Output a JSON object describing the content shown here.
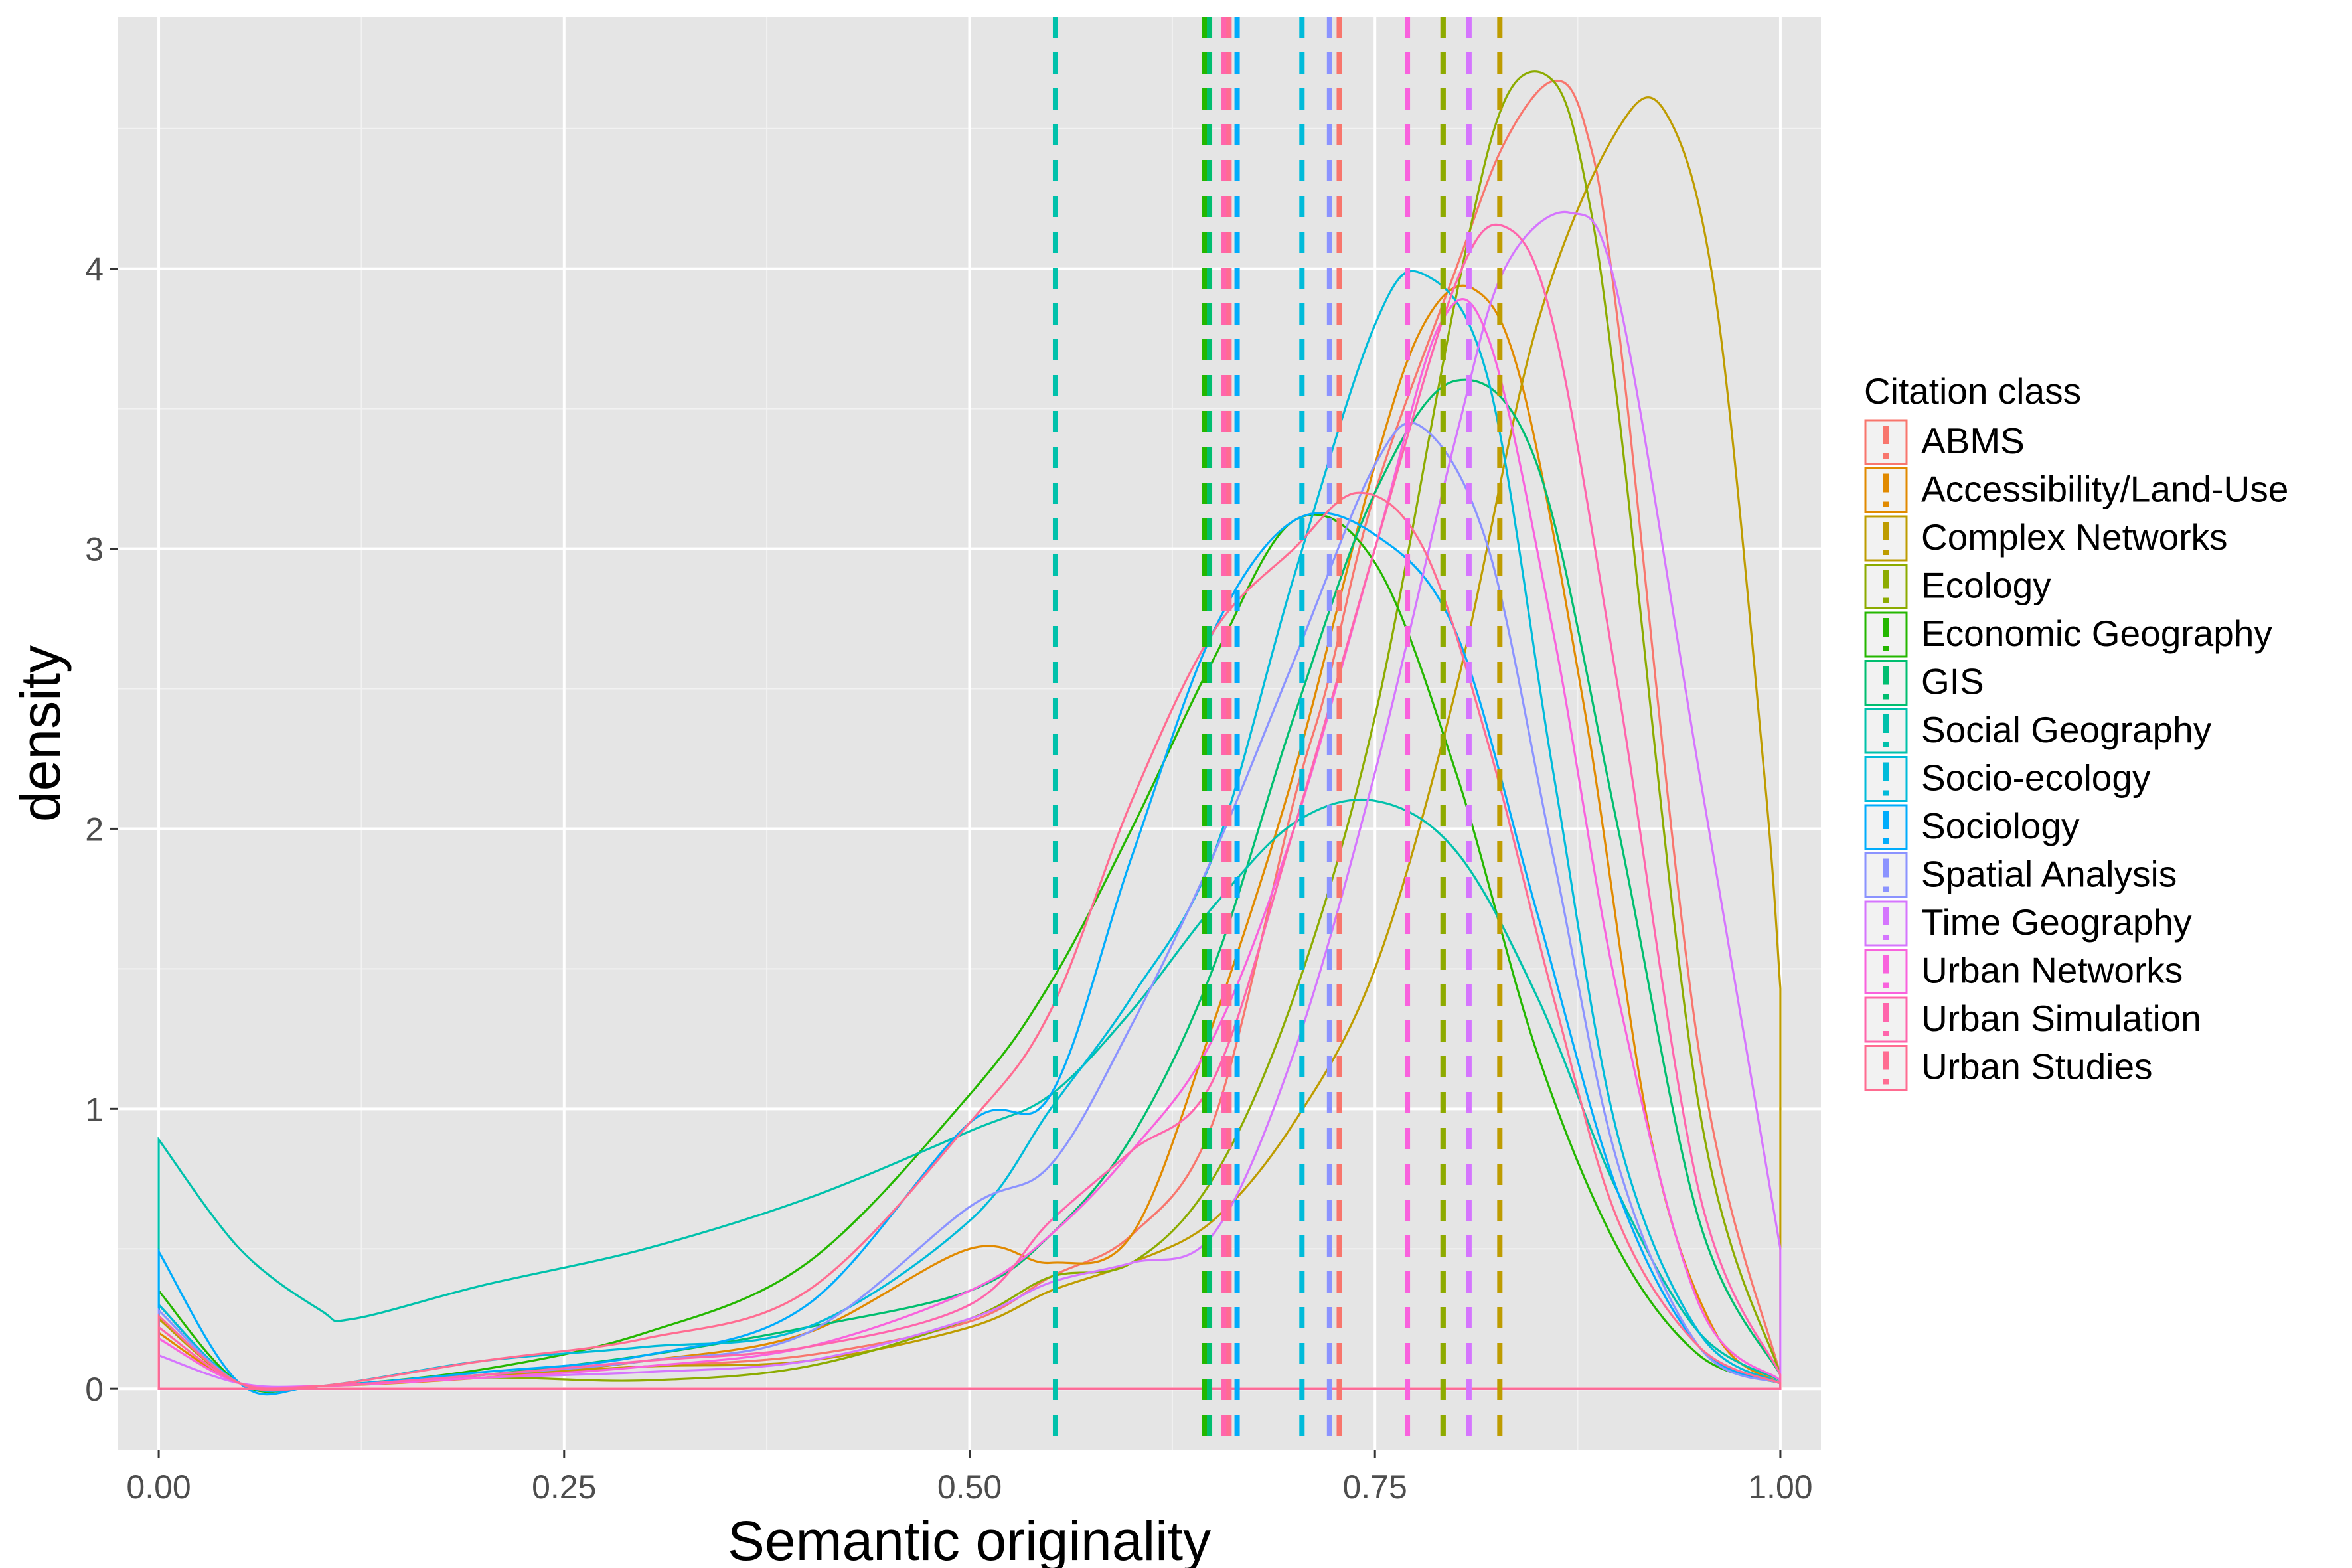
{
  "chart_data": {
    "type": "line",
    "title": "",
    "xlabel": "Semantic originality",
    "ylabel": "density",
    "xlim": [
      -0.025,
      1.025
    ],
    "ylim": [
      -0.22,
      4.9
    ],
    "x_ticks": [
      0,
      0.25,
      0.5,
      0.75,
      1
    ],
    "x_tick_labels": [
      "0.00",
      "0.25",
      "0.50",
      "0.75",
      "1.00"
    ],
    "y_ticks": [
      0,
      1,
      2,
      3,
      4
    ],
    "y_tick_labels": [
      "0",
      "1",
      "2",
      "3",
      "4"
    ],
    "grid": true,
    "background": "#e5e5e5",
    "legend": {
      "title": "Citation class",
      "position": "right"
    },
    "series": [
      {
        "name": "ABMS",
        "color": "#F8766D",
        "mean": 0.728,
        "x": [
          0,
          0.05,
          0.1,
          0.2,
          0.3,
          0.4,
          0.5,
          0.55,
          0.6,
          0.65,
          0.7,
          0.72,
          0.75,
          0.8,
          0.83,
          0.86,
          0.88,
          0.9,
          0.95,
          1.0
        ],
        "y": [
          0.25,
          0.02,
          0.01,
          0.05,
          0.08,
          0.12,
          0.24,
          0.4,
          0.55,
          0.95,
          2.1,
          2.5,
          3.2,
          4.0,
          4.45,
          4.67,
          4.5,
          3.8,
          1.2,
          0.05
        ]
      },
      {
        "name": "Accessibility/Land-Use",
        "color": "#E18A00",
        "mean": 0.792,
        "x": [
          0,
          0.05,
          0.1,
          0.2,
          0.3,
          0.4,
          0.5,
          0.55,
          0.6,
          0.65,
          0.7,
          0.75,
          0.78,
          0.81,
          0.84,
          0.88,
          0.92,
          0.96,
          1.0
        ],
        "y": [
          0.2,
          0.02,
          0.01,
          0.04,
          0.1,
          0.2,
          0.5,
          0.45,
          0.55,
          1.3,
          2.2,
          3.3,
          3.8,
          3.93,
          3.6,
          2.4,
          0.9,
          0.2,
          0.02
        ]
      },
      {
        "name": "Complex Networks",
        "color": "#BE9C00",
        "mean": 0.827,
        "x": [
          0,
          0.05,
          0.1,
          0.2,
          0.3,
          0.4,
          0.5,
          0.55,
          0.6,
          0.65,
          0.7,
          0.75,
          0.8,
          0.85,
          0.9,
          0.93,
          0.96,
          0.99,
          1.0
        ],
        "y": [
          0.25,
          0.02,
          0.01,
          0.05,
          0.08,
          0.1,
          0.22,
          0.35,
          0.45,
          0.6,
          0.95,
          1.5,
          2.5,
          3.8,
          4.5,
          4.55,
          3.9,
          2.2,
          1.43
        ]
      },
      {
        "name": "Ecology",
        "color": "#8CAB00",
        "mean": 0.792,
        "x": [
          0,
          0.05,
          0.1,
          0.2,
          0.3,
          0.4,
          0.5,
          0.55,
          0.6,
          0.65,
          0.7,
          0.75,
          0.8,
          0.83,
          0.86,
          0.88,
          0.9,
          0.95,
          1.0
        ],
        "y": [
          0.3,
          0.02,
          0.01,
          0.04,
          0.03,
          0.08,
          0.25,
          0.4,
          0.45,
          0.75,
          1.4,
          2.4,
          3.9,
          4.6,
          4.67,
          4.3,
          3.5,
          1.0,
          0.05
        ]
      },
      {
        "name": "Economic Geography",
        "color": "#24B700",
        "mean": 0.645,
        "x": [
          0,
          0.05,
          0.1,
          0.2,
          0.3,
          0.4,
          0.5,
          0.55,
          0.6,
          0.65,
          0.7,
          0.75,
          0.8,
          0.85,
          0.9,
          0.95,
          1.0
        ],
        "y": [
          0.35,
          0.02,
          0.01,
          0.07,
          0.2,
          0.45,
          1.05,
          1.45,
          2.0,
          2.6,
          3.1,
          2.95,
          2.2,
          1.2,
          0.5,
          0.12,
          0.02
        ]
      },
      {
        "name": "GIS",
        "color": "#00BE70",
        "mean": 0.648,
        "x": [
          0,
          0.05,
          0.1,
          0.2,
          0.3,
          0.4,
          0.5,
          0.55,
          0.6,
          0.65,
          0.7,
          0.75,
          0.8,
          0.85,
          0.9,
          0.95,
          1.0
        ],
        "y": [
          0.3,
          0.02,
          0.01,
          0.05,
          0.12,
          0.22,
          0.35,
          0.55,
          0.9,
          1.5,
          2.4,
          3.2,
          3.6,
          3.3,
          2.0,
          0.6,
          0.05
        ]
      },
      {
        "name": "Social Geography",
        "color": "#00C1AB",
        "mean": 0.553,
        "x": [
          0,
          0.05,
          0.1,
          0.12,
          0.2,
          0.3,
          0.4,
          0.5,
          0.55,
          0.6,
          0.65,
          0.7,
          0.75,
          0.8,
          0.85,
          0.9,
          0.95,
          1.0
        ],
        "y": [
          0.89,
          0.5,
          0.28,
          0.25,
          0.37,
          0.5,
          0.68,
          0.92,
          1.05,
          1.35,
          1.72,
          2.02,
          2.1,
          1.92,
          1.4,
          0.7,
          0.2,
          0.03
        ]
      },
      {
        "name": "Socio-ecology",
        "color": "#00BBDA",
        "mean": 0.705,
        "x": [
          0,
          0.05,
          0.1,
          0.2,
          0.3,
          0.4,
          0.5,
          0.55,
          0.6,
          0.65,
          0.7,
          0.75,
          0.78,
          0.82,
          0.86,
          0.9,
          0.95,
          1.0
        ],
        "y": [
          0.3,
          0.02,
          0.01,
          0.1,
          0.15,
          0.22,
          0.6,
          1.0,
          1.4,
          1.9,
          2.9,
          3.8,
          3.98,
          3.6,
          2.2,
          0.9,
          0.2,
          0.02
        ]
      },
      {
        "name": "Sociology",
        "color": "#00ACFC",
        "mean": 0.665,
        "x": [
          0,
          0.05,
          0.1,
          0.2,
          0.3,
          0.4,
          0.5,
          0.55,
          0.6,
          0.65,
          0.7,
          0.75,
          0.8,
          0.85,
          0.9,
          0.95,
          1.0
        ],
        "y": [
          0.49,
          0.02,
          0.01,
          0.06,
          0.12,
          0.3,
          0.95,
          1.05,
          1.9,
          2.7,
          3.1,
          3.05,
          2.7,
          1.7,
          0.7,
          0.15,
          0.02
        ]
      },
      {
        "name": "Spatial Analysis",
        "color": "#8B93FF",
        "mean": 0.722,
        "x": [
          0,
          0.05,
          0.1,
          0.2,
          0.3,
          0.4,
          0.5,
          0.55,
          0.6,
          0.65,
          0.7,
          0.75,
          0.78,
          0.82,
          0.86,
          0.9,
          0.95,
          1.0
        ],
        "y": [
          0.28,
          0.02,
          0.01,
          0.05,
          0.1,
          0.2,
          0.65,
          0.8,
          1.3,
          1.9,
          2.6,
          3.3,
          3.43,
          3.0,
          1.9,
          0.8,
          0.15,
          0.02
        ]
      },
      {
        "name": "Time Geography",
        "color": "#D575FE",
        "mean": 0.808,
        "x": [
          0,
          0.05,
          0.1,
          0.2,
          0.3,
          0.4,
          0.5,
          0.55,
          0.6,
          0.65,
          0.7,
          0.75,
          0.8,
          0.83,
          0.87,
          0.9,
          0.95,
          1.0
        ],
        "y": [
          0.12,
          0.02,
          0.01,
          0.04,
          0.06,
          0.1,
          0.25,
          0.38,
          0.45,
          0.55,
          1.2,
          2.2,
          3.4,
          4.0,
          4.2,
          3.9,
          2.2,
          0.5
        ]
      },
      {
        "name": "Urban Networks",
        "color": "#F962DD",
        "mean": 0.77,
        "x": [
          0,
          0.05,
          0.1,
          0.2,
          0.3,
          0.4,
          0.5,
          0.55,
          0.6,
          0.65,
          0.7,
          0.75,
          0.79,
          0.82,
          0.86,
          0.9,
          0.95,
          1.0
        ],
        "y": [
          0.18,
          0.02,
          0.01,
          0.04,
          0.08,
          0.15,
          0.35,
          0.55,
          0.85,
          1.25,
          2.0,
          3.0,
          3.8,
          3.75,
          2.7,
          1.4,
          0.3,
          0.03
        ]
      },
      {
        "name": "Urban Simulation",
        "color": "#FF65AC",
        "mean": 0.657,
        "x": [
          0,
          0.05,
          0.1,
          0.2,
          0.3,
          0.4,
          0.5,
          0.55,
          0.6,
          0.65,
          0.7,
          0.75,
          0.8,
          0.83,
          0.86,
          0.9,
          0.95,
          1.0
        ],
        "y": [
          0.22,
          0.02,
          0.01,
          0.05,
          0.1,
          0.15,
          0.3,
          0.6,
          0.85,
          1.1,
          2.0,
          3.0,
          3.95,
          4.15,
          3.8,
          2.5,
          0.7,
          0.05
        ]
      },
      {
        "name": "Urban Studies",
        "color": "#FF6C91",
        "mean": 0.66,
        "x": [
          0,
          0.05,
          0.1,
          0.2,
          0.3,
          0.4,
          0.5,
          0.55,
          0.6,
          0.65,
          0.7,
          0.74,
          0.78,
          0.82,
          0.86,
          0.9,
          0.95,
          1.0
        ],
        "y": [
          0.26,
          0.02,
          0.01,
          0.1,
          0.18,
          0.35,
          0.95,
          1.35,
          2.1,
          2.7,
          3.0,
          3.2,
          3.0,
          2.3,
          1.4,
          0.6,
          0.15,
          0.02
        ]
      }
    ]
  }
}
